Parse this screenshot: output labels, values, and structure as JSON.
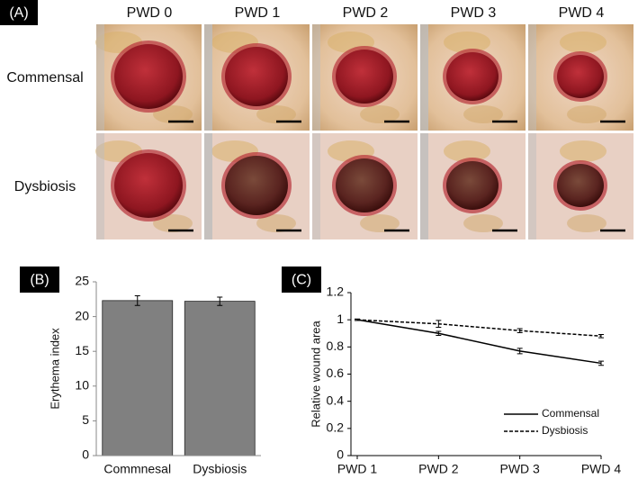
{
  "photo_grid": {
    "panel_label": "(A)",
    "columns": [
      "PWD 0",
      "PWD 1",
      "PWD 2",
      "PWD 3",
      "PWD 4"
    ],
    "rows": [
      "Commensal",
      "Dysbiosis"
    ]
  },
  "chart_data": [
    {
      "type": "bar",
      "panel_label": "(B)",
      "y_label": "Erythema index",
      "categories": [
        "Commnesal",
        "Dysbiosis"
      ],
      "values": [
        22.3,
        22.2
      ],
      "errors": [
        0.7,
        0.6
      ],
      "color": "#808080",
      "ylim": [
        0,
        25
      ],
      "yticks": [
        0,
        5,
        10,
        15,
        20,
        25
      ]
    },
    {
      "type": "line",
      "panel_label": "(C)",
      "y_label": "Relative wound area",
      "categories": [
        "PWD 1",
        "PWD 2",
        "PWD 3",
        "PWD 4"
      ],
      "series": [
        {
          "name": "Commensal",
          "color": "#000000",
          "dashed": false,
          "values": [
            1,
            0.9,
            0.77,
            0.68
          ],
          "errors": [
            0.005,
            0.015,
            0.02,
            0.015
          ]
        },
        {
          "name": "Dysbiosis",
          "color": "#000000",
          "dashed": true,
          "values": [
            1,
            0.97,
            0.92,
            0.88
          ],
          "errors": [
            0.005,
            0.025,
            0.015,
            0.012
          ]
        }
      ],
      "ylim": [
        0,
        1.2
      ],
      "yticks": [
        0,
        0.2,
        0.4,
        0.6,
        0.8,
        1,
        1.2
      ],
      "legend": "lower right"
    }
  ]
}
